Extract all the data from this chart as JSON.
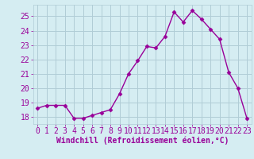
{
  "x": [
    0,
    1,
    2,
    3,
    4,
    5,
    6,
    7,
    8,
    9,
    10,
    11,
    12,
    13,
    14,
    15,
    16,
    17,
    18,
    19,
    20,
    21,
    22,
    23
  ],
  "y": [
    18.6,
    18.8,
    18.8,
    18.8,
    17.9,
    17.9,
    18.1,
    18.3,
    18.5,
    19.6,
    21.0,
    21.9,
    22.9,
    22.8,
    23.6,
    25.3,
    24.6,
    25.4,
    24.8,
    24.1,
    23.4,
    21.1,
    20.0,
    17.9
  ],
  "line_color": "#990099",
  "marker": "D",
  "markersize": 2.5,
  "linewidth": 1.0,
  "xlabel": "Windchill (Refroidissement éolien,°C)",
  "ylim": [
    17.5,
    25.8
  ],
  "xlim": [
    -0.5,
    23.5
  ],
  "yticks": [
    18,
    19,
    20,
    21,
    22,
    23,
    24,
    25
  ],
  "xticks": [
    0,
    1,
    2,
    3,
    4,
    5,
    6,
    7,
    8,
    9,
    10,
    11,
    12,
    13,
    14,
    15,
    16,
    17,
    18,
    19,
    20,
    21,
    22,
    23
  ],
  "background_color": "#d5edf2",
  "grid_color": "#b0cdd6",
  "tick_color": "#990099",
  "xlabel_color": "#990099",
  "xlabel_fontsize": 7,
  "tick_fontsize": 7
}
